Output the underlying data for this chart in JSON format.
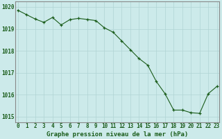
{
  "x": [
    0,
    1,
    2,
    3,
    4,
    5,
    6,
    7,
    8,
    9,
    10,
    11,
    12,
    13,
    14,
    15,
    16,
    17,
    18,
    19,
    20,
    21,
    22,
    23
  ],
  "y": [
    1019.85,
    1019.65,
    1019.45,
    1019.3,
    1019.52,
    1019.18,
    1019.42,
    1019.48,
    1019.43,
    1019.38,
    1019.05,
    1018.85,
    1018.45,
    1018.05,
    1017.65,
    1017.35,
    1016.6,
    1016.05,
    1015.3,
    1015.3,
    1015.18,
    1015.15,
    1016.05,
    1016.38
  ],
  "line_color": "#1a5c1a",
  "marker_color": "#1a5c1a",
  "bg_color": "#cceaea",
  "grid_color": "#b0d4d4",
  "title": "Graphe pression niveau de la mer (hPa)",
  "xlim": [
    -0.3,
    23.3
  ],
  "ylim": [
    1014.75,
    1020.25
  ],
  "yticks": [
    1015,
    1016,
    1017,
    1018,
    1019,
    1020
  ],
  "xticks": [
    0,
    1,
    2,
    3,
    4,
    5,
    6,
    7,
    8,
    9,
    10,
    11,
    12,
    13,
    14,
    15,
    16,
    17,
    18,
    19,
    20,
    21,
    22,
    23
  ],
  "title_fontsize": 6.5,
  "tick_fontsize": 5.5,
  "title_color": "#1a5c1a",
  "tick_color": "#1a5c1a",
  "spine_color": "#888888"
}
